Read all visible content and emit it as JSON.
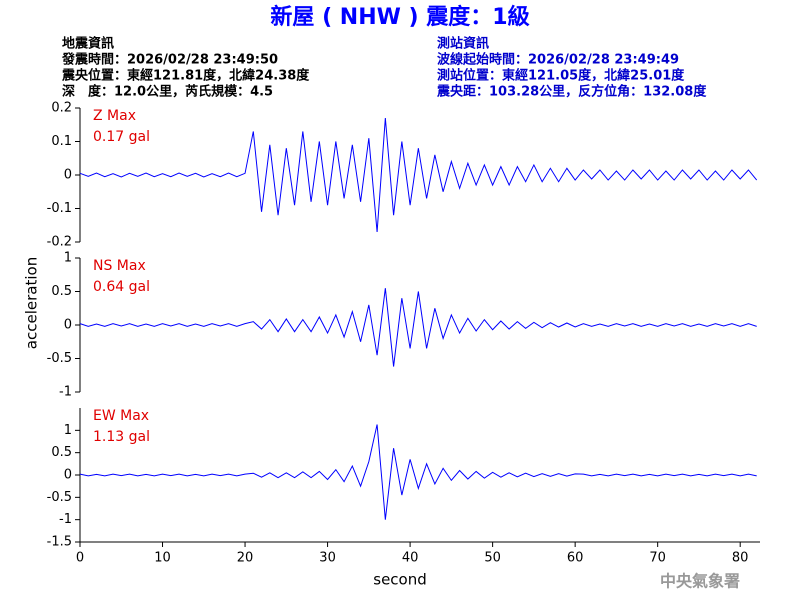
{
  "header": {
    "title": "新屋 ( NHW ) 震度：1級",
    "left": [
      "地震資訊",
      "發震時間：2026/02/28 23:49:50",
      "震央位置：東經121.81度，北緯24.38度",
      "深　度：12.0公里，芮氏規模：4.5"
    ],
    "right": [
      "測站資訊",
      "波線起始時間：2026/02/28 23:49:49",
      "測站位置：東經121.05度，北緯25.01度",
      "震央距：103.28公里，反方位角：132.08度"
    ]
  },
  "y_label": "acceleration",
  "footer": "中央氣象署",
  "chart_data": [
    {
      "type": "line",
      "annotations": [
        "Z Max",
        "0.17 gal"
      ],
      "color": "#0000ff",
      "xlim": [
        0,
        82.4
      ],
      "ylim": [
        -0.2,
        0.2
      ],
      "yticks": [
        -0.2,
        -0.1,
        0,
        0.1,
        0.2
      ],
      "x": [
        0,
        1,
        2,
        3,
        4,
        5,
        6,
        7,
        8,
        9,
        10,
        11,
        12,
        13,
        14,
        15,
        16,
        17,
        18,
        19,
        20,
        21,
        22,
        23,
        24,
        25,
        26,
        27,
        28,
        29,
        30,
        31,
        32,
        33,
        34,
        35,
        36,
        37,
        38,
        39,
        40,
        41,
        42,
        43,
        44,
        45,
        46,
        47,
        48,
        49,
        50,
        51,
        52,
        53,
        54,
        55,
        56,
        57,
        58,
        59,
        60,
        61,
        62,
        63,
        64,
        65,
        66,
        67,
        68,
        69,
        70,
        71,
        72,
        73,
        74,
        75,
        76,
        77,
        78,
        79,
        80,
        81,
        82
      ],
      "values": [
        0.005,
        -0.004,
        0.006,
        -0.005,
        0.004,
        -0.006,
        0.005,
        -0.004,
        0.006,
        -0.005,
        0.004,
        -0.005,
        0.006,
        -0.004,
        0.005,
        -0.006,
        0.004,
        -0.005,
        0.006,
        -0.005,
        0.005,
        0.13,
        -0.11,
        0.09,
        -0.12,
        0.08,
        -0.09,
        0.13,
        -0.08,
        0.1,
        -0.09,
        0.1,
        -0.07,
        0.09,
        -0.08,
        0.11,
        -0.17,
        0.17,
        -0.12,
        0.1,
        -0.09,
        0.08,
        -0.07,
        0.06,
        -0.05,
        0.04,
        -0.04,
        0.035,
        -0.03,
        0.03,
        -0.03,
        0.025,
        -0.03,
        0.025,
        -0.02,
        0.03,
        -0.02,
        0.02,
        -0.02,
        0.02,
        -0.015,
        0.015,
        -0.012,
        0.015,
        -0.015,
        0.012,
        -0.015,
        0.015,
        -0.012,
        0.015,
        -0.015,
        0.012,
        -0.015,
        0.015,
        -0.012,
        0.015,
        -0.015,
        0.012,
        -0.015,
        0.015,
        -0.012,
        0.015,
        -0.015
      ]
    },
    {
      "type": "line",
      "annotations": [
        "NS Max",
        "0.64 gal"
      ],
      "color": "#0000ff",
      "xlim": [
        0,
        82.4
      ],
      "ylim": [
        -1,
        1
      ],
      "yticks": [
        -1,
        -0.5,
        0,
        0.5,
        1
      ],
      "x": [
        0,
        1,
        2,
        3,
        4,
        5,
        6,
        7,
        8,
        9,
        10,
        11,
        12,
        13,
        14,
        15,
        16,
        17,
        18,
        19,
        20,
        21,
        22,
        23,
        24,
        25,
        26,
        27,
        28,
        29,
        30,
        31,
        32,
        33,
        34,
        35,
        36,
        37,
        38,
        39,
        40,
        41,
        42,
        43,
        44,
        45,
        46,
        47,
        48,
        49,
        50,
        51,
        52,
        53,
        54,
        55,
        56,
        57,
        58,
        59,
        60,
        61,
        62,
        63,
        64,
        65,
        66,
        67,
        68,
        69,
        70,
        71,
        72,
        73,
        74,
        75,
        76,
        77,
        78,
        79,
        80,
        81,
        82
      ],
      "values": [
        0.02,
        -0.02,
        0.015,
        -0.02,
        0.02,
        -0.015,
        0.02,
        -0.02,
        0.015,
        -0.02,
        0.02,
        -0.015,
        0.02,
        -0.02,
        0.015,
        -0.02,
        0.02,
        -0.015,
        0.02,
        -0.02,
        0.02,
        0.05,
        -0.06,
        0.08,
        -0.1,
        0.09,
        -0.1,
        0.08,
        -0.1,
        0.12,
        -0.12,
        0.15,
        -0.18,
        0.2,
        -0.25,
        0.3,
        -0.45,
        0.55,
        -0.62,
        0.4,
        -0.35,
        0.5,
        -0.35,
        0.25,
        -0.2,
        0.15,
        -0.12,
        0.1,
        -0.09,
        0.08,
        -0.07,
        0.06,
        -0.06,
        0.05,
        -0.05,
        0.04,
        -0.04,
        0.035,
        -0.03,
        0.03,
        -0.03,
        0.02,
        -0.02,
        0.015,
        -0.02,
        0.02,
        -0.015,
        0.02,
        -0.02,
        0.015,
        -0.02,
        0.02,
        -0.015,
        0.02,
        -0.02,
        0.015,
        -0.02,
        0.02,
        -0.015,
        0.02,
        -0.02,
        0.02,
        -0.02
      ]
    },
    {
      "type": "line",
      "annotations": [
        "EW Max",
        "1.13 gal"
      ],
      "color": "#0000ff",
      "x_label": "second",
      "xlim": [
        0,
        82.4
      ],
      "ylim": [
        -1.5,
        1.5
      ],
      "yticks": [
        -1.5,
        -1,
        -0.5,
        0,
        0.5,
        1
      ],
      "xticks": [
        0,
        10,
        20,
        30,
        40,
        50,
        60,
        70,
        80
      ],
      "x": [
        0,
        1,
        2,
        3,
        4,
        5,
        6,
        7,
        8,
        9,
        10,
        11,
        12,
        13,
        14,
        15,
        16,
        17,
        18,
        19,
        20,
        21,
        22,
        23,
        24,
        25,
        26,
        27,
        28,
        29,
        30,
        31,
        32,
        33,
        34,
        35,
        36,
        37,
        38,
        39,
        40,
        41,
        42,
        43,
        44,
        45,
        46,
        47,
        48,
        49,
        50,
        51,
        52,
        53,
        54,
        55,
        56,
        57,
        58,
        59,
        60,
        61,
        62,
        63,
        64,
        65,
        66,
        67,
        68,
        69,
        70,
        71,
        72,
        73,
        74,
        75,
        76,
        77,
        78,
        79,
        80,
        81,
        82
      ],
      "values": [
        0.02,
        -0.02,
        0.015,
        -0.02,
        0.02,
        -0.015,
        0.02,
        -0.02,
        0.015,
        -0.02,
        0.02,
        -0.015,
        0.02,
        -0.02,
        0.015,
        -0.02,
        0.02,
        -0.015,
        0.02,
        -0.02,
        0.02,
        0.04,
        -0.05,
        0.05,
        -0.06,
        0.05,
        -0.06,
        0.07,
        -0.06,
        0.08,
        -0.1,
        0.12,
        -0.15,
        0.2,
        -0.25,
        0.3,
        1.13,
        -1.0,
        0.6,
        -0.45,
        0.35,
        -0.3,
        0.25,
        -0.2,
        0.15,
        -0.12,
        0.1,
        -0.09,
        0.08,
        -0.07,
        0.06,
        -0.05,
        0.05,
        -0.04,
        0.04,
        -0.035,
        0.03,
        -0.03,
        0.03,
        -0.025,
        0.025,
        0.02,
        -0.02,
        0.015,
        -0.02,
        0.02,
        -0.015,
        0.02,
        -0.02,
        0.015,
        -0.02,
        0.02,
        -0.015,
        0.02,
        -0.02,
        0.015,
        -0.02,
        0.02,
        -0.015,
        0.02,
        -0.02,
        0.02,
        -0.02
      ]
    }
  ]
}
